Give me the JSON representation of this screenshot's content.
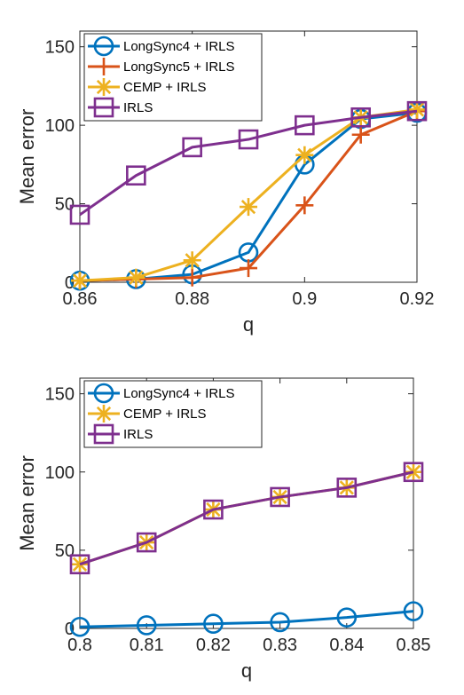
{
  "chart_data": [
    {
      "type": "line",
      "xlabel": "q",
      "ylabel": "Mean error",
      "xlim": [
        0.86,
        0.92
      ],
      "ylim": [
        0,
        160
      ],
      "xticks": [
        "0.86",
        "0.88",
        "0.9",
        "0.92"
      ],
      "xtick_values": [
        0.86,
        0.88,
        0.9,
        0.92
      ],
      "yticks": [
        "0",
        "50",
        "100",
        "150"
      ],
      "ytick_values": [
        0,
        50,
        100,
        150
      ],
      "grid": false,
      "legend_position": "top-left",
      "x": [
        0.86,
        0.87,
        0.88,
        0.89,
        0.9,
        0.91,
        0.92
      ],
      "series": [
        {
          "name": "LongSync4 + IRLS",
          "color": "#0072BD",
          "marker": "circle",
          "values": [
            1,
            2,
            5,
            19,
            75,
            104,
            108
          ]
        },
        {
          "name": "LongSync5 + IRLS",
          "color": "#D95319",
          "marker": "plus",
          "values": [
            1,
            2,
            3,
            9,
            49,
            94,
            109
          ]
        },
        {
          "name": "CEMP + IRLS",
          "color": "#EDB120",
          "marker": "asterisk",
          "values": [
            1,
            3,
            14,
            48,
            81,
            105,
            110
          ]
        },
        {
          "name": "IRLS",
          "color": "#7E2F8E",
          "marker": "square",
          "values": [
            43,
            68,
            86,
            91,
            100,
            105,
            109
          ]
        }
      ]
    },
    {
      "type": "line",
      "xlabel": "q",
      "ylabel": "Mean error",
      "xlim": [
        0.8,
        0.85
      ],
      "ylim": [
        0,
        160
      ],
      "xticks": [
        "0.8",
        "0.81",
        "0.82",
        "0.83",
        "0.84",
        "0.85"
      ],
      "xtick_values": [
        0.8,
        0.81,
        0.82,
        0.83,
        0.84,
        0.85
      ],
      "yticks": [
        "0",
        "50",
        "100",
        "150"
      ],
      "ytick_values": [
        0,
        50,
        100,
        150
      ],
      "grid": false,
      "legend_position": "top-left",
      "x": [
        0.8,
        0.81,
        0.82,
        0.83,
        0.84,
        0.85
      ],
      "series": [
        {
          "name": "LongSync4 + IRLS",
          "color": "#0072BD",
          "marker": "circle",
          "values": [
            1,
            2,
            3,
            4,
            7,
            11
          ]
        },
        {
          "name": "CEMP + IRLS",
          "color": "#EDB120",
          "marker": "asterisk",
          "values": [
            41,
            55,
            76,
            84,
            90,
            100
          ]
        },
        {
          "name": "IRLS",
          "color": "#7E2F8E",
          "marker": "square",
          "values": [
            41,
            55,
            76,
            84,
            90,
            100
          ]
        }
      ]
    }
  ]
}
